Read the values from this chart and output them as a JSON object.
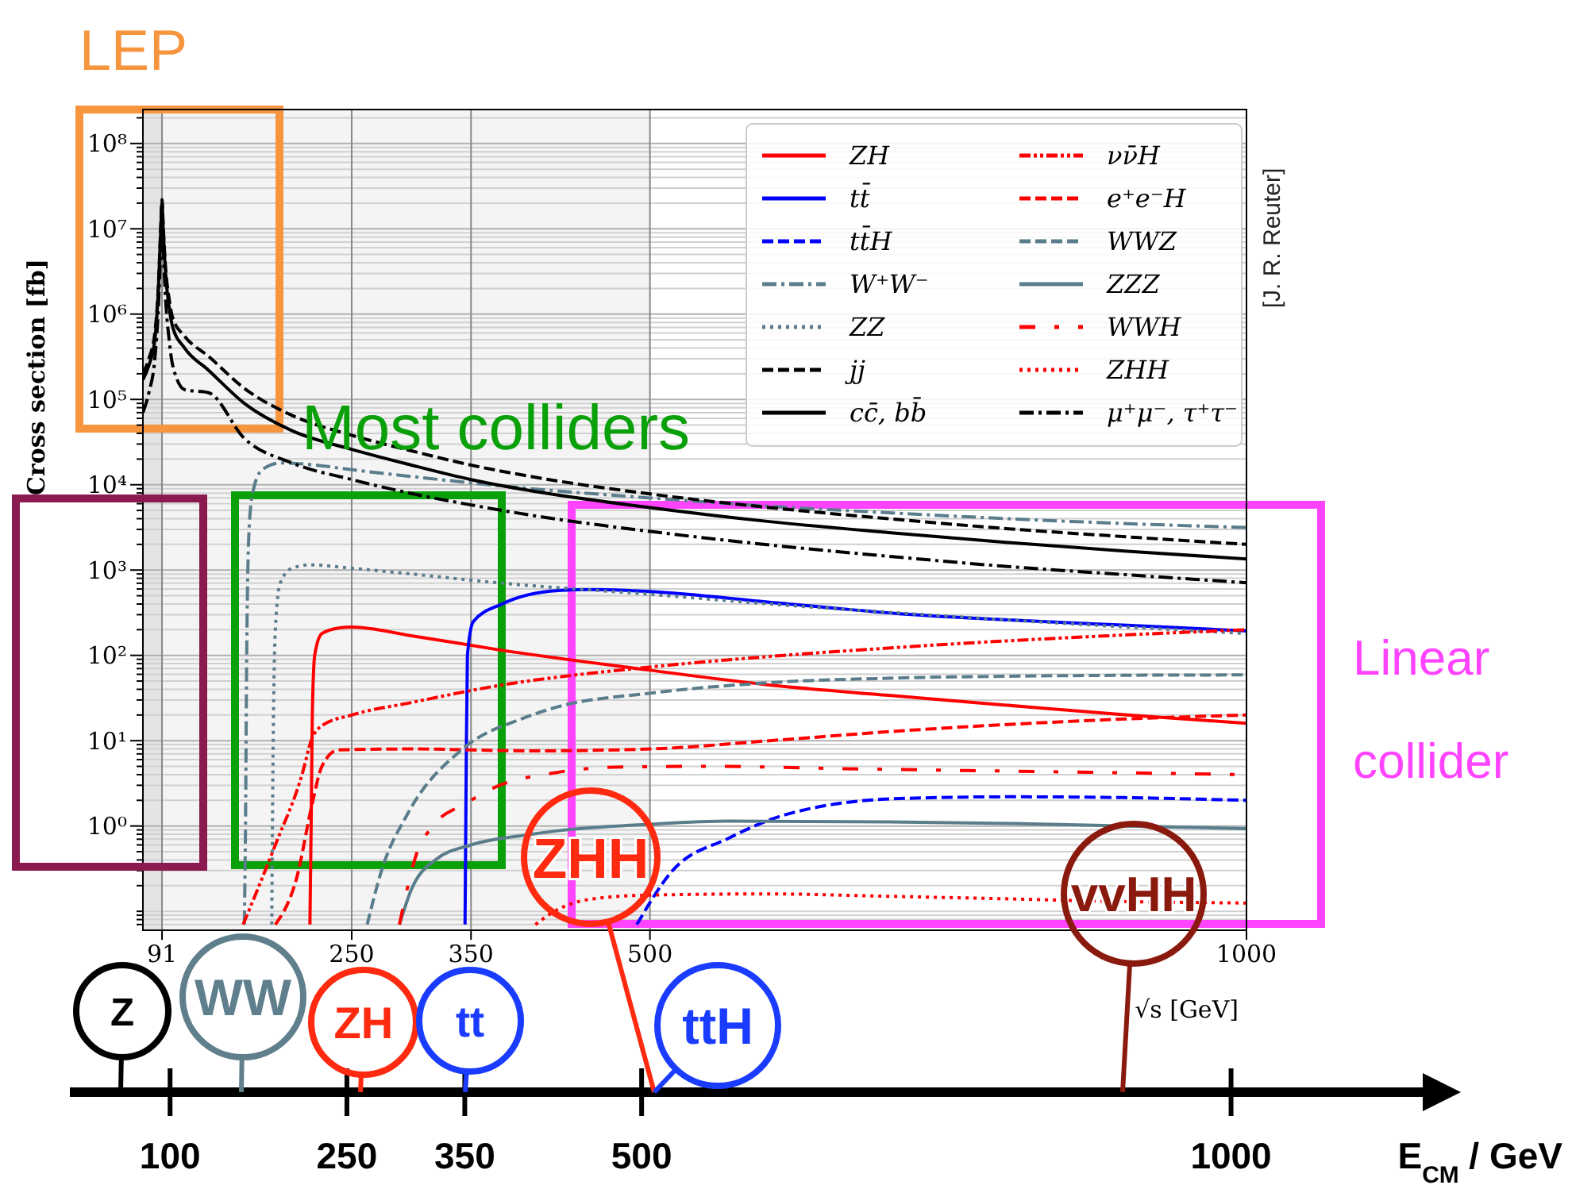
{
  "chart_data": {
    "type": "line",
    "xlabel": "√s [GeV]",
    "ylabel": "Cross section [fb]",
    "x2label": "E$_{CM}$ / GeV",
    "xlim": [
      75,
      1000
    ],
    "xticks": [
      91,
      250,
      350,
      500,
      1000
    ],
    "x2lim": [
      15,
      1168
    ],
    "x2ticks": [
      100,
      250,
      350,
      500,
      1000
    ],
    "ylim": [
      0.06,
      250000000.0
    ],
    "log": true,
    "grid": true,
    "legend": "top right",
    "yticks": [
      {
        "value": 0.07,
        "label": null
      },
      {
        "value": 0.08,
        "label": null
      },
      {
        "value": 0.09,
        "label": null
      },
      {
        "value": 0.1,
        "label": null
      },
      {
        "value": 0.2,
        "label": null
      },
      {
        "value": 0.3,
        "label": null
      },
      {
        "value": 0.4,
        "label": null
      },
      {
        "value": 0.5,
        "label": null
      },
      {
        "value": 0.6,
        "label": null
      },
      {
        "value": 0.7,
        "label": null
      },
      {
        "value": 0.8,
        "label": null
      },
      {
        "value": 0.9,
        "label": null
      },
      {
        "value": 1,
        "label": "10⁰"
      },
      {
        "value": 2,
        "label": null
      },
      {
        "value": 3,
        "label": null
      },
      {
        "value": 4,
        "label": null
      },
      {
        "value": 5,
        "label": null
      },
      {
        "value": 6,
        "label": null
      },
      {
        "value": 7,
        "label": null
      },
      {
        "value": 8,
        "label": null
      },
      {
        "value": 9,
        "label": null
      },
      {
        "value": 10,
        "label": "10¹"
      },
      {
        "value": 20,
        "label": null
      },
      {
        "value": 30,
        "label": null
      },
      {
        "value": 40,
        "label": null
      },
      {
        "value": 50,
        "label": null
      },
      {
        "value": 60,
        "label": null
      },
      {
        "value": 70,
        "label": null
      },
      {
        "value": 80,
        "label": null
      },
      {
        "value": 90,
        "label": null
      },
      {
        "value": 100,
        "label": "10²"
      },
      {
        "value": 200,
        "label": null
      },
      {
        "value": 300,
        "label": null
      },
      {
        "value": 400,
        "label": null
      },
      {
        "value": 500,
        "label": null
      },
      {
        "value": 600,
        "label": null
      },
      {
        "value": 700,
        "label": null
      },
      {
        "value": 800,
        "label": null
      },
      {
        "value": 900,
        "label": null
      },
      {
        "value": 1000,
        "label": "10³"
      },
      {
        "value": 2000,
        "label": null
      },
      {
        "value": 3000,
        "label": null
      },
      {
        "value": 4000,
        "label": null
      },
      {
        "value": 5000,
        "label": null
      },
      {
        "value": 6000,
        "label": null
      },
      {
        "value": 7000,
        "label": null
      },
      {
        "value": 8000,
        "label": null
      },
      {
        "value": 9000,
        "label": null
      },
      {
        "value": 10000.0,
        "label": "10⁴"
      },
      {
        "value": 20000.0,
        "label": null
      },
      {
        "value": 30000.0,
        "label": null
      },
      {
        "value": 40000.0,
        "label": null
      },
      {
        "value": 50000.0,
        "label": null
      },
      {
        "value": 60000.0,
        "label": null
      },
      {
        "value": 70000.0,
        "label": null
      },
      {
        "value": 80000.0,
        "label": null
      },
      {
        "value": 90000.0,
        "label": null
      },
      {
        "value": 100000.0,
        "label": "10⁵"
      },
      {
        "value": 200000.0,
        "label": null
      },
      {
        "value": 300000.0,
        "label": null
      },
      {
        "value": 400000.0,
        "label": null
      },
      {
        "value": 500000.0,
        "label": null
      },
      {
        "value": 600000.0,
        "label": null
      },
      {
        "value": 700000.0,
        "label": null
      },
      {
        "value": 800000.0,
        "label": null
      },
      {
        "value": 900000.0,
        "label": null
      },
      {
        "value": 1000000.0,
        "label": "10⁶"
      },
      {
        "value": 2000000.0,
        "label": null
      },
      {
        "value": 3000000.0,
        "label": null
      },
      {
        "value": 4000000.0,
        "label": null
      },
      {
        "value": 5000000.0,
        "label": null
      },
      {
        "value": 6000000.0,
        "label": null
      },
      {
        "value": 7000000.0,
        "label": null
      },
      {
        "value": 8000000.0,
        "label": null
      },
      {
        "value": 9000000.0,
        "label": null
      },
      {
        "value": 10000000.0,
        "label": "10⁷"
      },
      {
        "value": 20000000.0,
        "label": null
      },
      {
        "value": 30000000.0,
        "label": null
      },
      {
        "value": 40000000.0,
        "label": null
      },
      {
        "value": 50000000.0,
        "label": null
      },
      {
        "value": 60000000.0,
        "label": null
      },
      {
        "value": 70000000.0,
        "label": null
      },
      {
        "value": 80000000.0,
        "label": null
      },
      {
        "value": 90000000.0,
        "label": null
      },
      {
        "value": 100000000.0,
        "label": "10⁸"
      },
      {
        "value": 200000000.0,
        "label": null
      }
    ],
    "bands": [
      {
        "axis": "x",
        "from": 75,
        "to": 91,
        "color": "#e4e4e4"
      },
      {
        "axis": "x",
        "from": 91,
        "to": 500,
        "color": "#f4f4f4"
      }
    ],
    "series": [
      {
        "name": "ZH",
        "color": "#ff0000",
        "line_style": "solid",
        "x": [
          215,
          216,
          217,
          219,
          225,
          240,
          250,
          300,
          372,
          500,
          600,
          700,
          800,
          900,
          1000
        ],
        "values": [
          0.07,
          1,
          20,
          100,
          180,
          210,
          215,
          170,
          117,
          67,
          45,
          34,
          26,
          20,
          16
        ]
      },
      {
        "name": "tt̄",
        "color": "#0000ff",
        "line_style": "solid",
        "x": [
          345,
          346,
          347,
          352,
          376,
          423,
          450,
          500,
          600,
          709,
          800,
          900,
          1000
        ],
        "values": [
          0.07,
          5,
          100,
          250,
          400,
          575,
          590,
          560,
          420,
          308,
          260,
          225,
          194
        ]
      },
      {
        "name": "tt̄H",
        "color": "#0000ff",
        "line_style": "dashed",
        "x": [
          489,
          518,
          566,
          613,
          709,
          804,
          900,
          1000
        ],
        "values": [
          0.07,
          0.29,
          0.72,
          1.35,
          2.1,
          2.2,
          2.15,
          2.0
        ]
      },
      {
        "name": "W⁺W⁻",
        "color": "#5a7d8c",
        "line_style": "dashdot",
        "x": [
          160,
          161,
          162,
          164,
          167,
          175,
          190,
          220,
          250,
          300,
          400,
          500,
          600,
          700,
          800,
          900,
          1000
        ],
        "values": [
          0.07,
          1,
          100,
          3000,
          8000,
          15000,
          18000,
          17000,
          15000,
          12500,
          9000,
          7000,
          5600,
          4700,
          4000,
          3500,
          3160
        ]
      },
      {
        "name": "ZZ",
        "color": "#5a7d8c",
        "line_style": "dotted",
        "x": [
          183,
          184,
          186,
          190,
          200,
          215,
          250,
          300,
          372,
          500,
          600,
          700,
          800,
          900,
          1000
        ],
        "values": [
          0.07,
          5,
          200,
          700,
          1050,
          1150,
          1050,
          900,
          710,
          520,
          400,
          320,
          260,
          215,
          180
        ]
      },
      {
        "name": "jj",
        "color": "#000000",
        "line_style": "dashed",
        "x": [
          75,
          80,
          85,
          88,
          90,
          91,
          92,
          94,
          97,
          100,
          110,
          130,
          160,
          200,
          250,
          300,
          350,
          400,
          500,
          600,
          700,
          800,
          900,
          1000
        ],
        "values": [
          200000,
          300000,
          600000,
          2200000,
          11000000,
          22000000,
          11000000,
          3500000,
          1500000,
          900000,
          550000,
          320000,
          135000,
          65000,
          38000,
          25000,
          17000,
          12500,
          7800,
          5400,
          4000,
          3050,
          2450,
          2000
        ]
      },
      {
        "name": "cc̄, bb̄",
        "color": "#000000",
        "line_style": "solid",
        "x": [
          75,
          80,
          85,
          88,
          90,
          91,
          92,
          94,
          97,
          100,
          110,
          130,
          160,
          200,
          250,
          300,
          350,
          400,
          500,
          600,
          700,
          800,
          900,
          1000
        ],
        "values": [
          170000,
          250000,
          500000,
          2000000,
          10000000,
          20000000,
          10000000,
          3000000,
          1200000,
          700000,
          400000,
          220000,
          90000,
          43000,
          26000,
          17000,
          11500,
          8500,
          5400,
          3700,
          2750,
          2100,
          1660,
          1350
        ]
      },
      {
        "name": "νν̄H",
        "color": "#ff0000",
        "line_style": "dashdotdot",
        "x": [
          159,
          186,
          209,
          216,
          225,
          250,
          300,
          372,
          500,
          600,
          700,
          800,
          900,
          1000
        ],
        "values": [
          0.07,
          0.6,
          4.3,
          10,
          15,
          20,
          28,
          44,
          73,
          97,
          122,
          148,
          174,
          200
        ]
      },
      {
        "name": "e⁺e⁻H",
        "color": "#ff0000",
        "line_style": "dashed",
        "x": [
          186,
          204,
          217,
          225,
          239,
          300,
          400,
          500,
          600,
          709,
          800,
          900,
          1000
        ],
        "values": [
          0.07,
          0.25,
          1.85,
          5,
          7.8,
          8,
          7.6,
          8,
          10,
          13,
          15.5,
          18,
          20
        ]
      },
      {
        "name": "WWZ",
        "color": "#5a7d8c",
        "line_style": "dashed",
        "x": [
          263,
          275,
          297,
          342,
          395,
          423,
          500,
          613,
          700,
          800,
          900,
          1000
        ],
        "values": [
          0.07,
          0.3,
          1.4,
          7.8,
          18.6,
          25,
          36,
          49,
          54,
          57,
          58.5,
          59
        ]
      },
      {
        "name": "ZZZ",
        "color": "#5a7d8c",
        "line_style": "solid",
        "x": [
          290,
          300,
          320,
          350,
          395,
          423,
          500,
          566,
          700,
          804,
          900,
          1000
        ],
        "values": [
          0.07,
          0.18,
          0.4,
          0.6,
          0.78,
          0.88,
          1.05,
          1.14,
          1.12,
          1.07,
          1.0,
          0.93
        ]
      },
      {
        "name": "WWH",
        "color": "#ff0000",
        "line_style": "loose_dashdot",
        "x": [
          290,
          305,
          318,
          346,
          369,
          420,
          471,
          550,
          661,
          800,
          900,
          1000
        ],
        "values": [
          0.07,
          0.5,
          1.0,
          1.85,
          2.8,
          4.2,
          4.9,
          5.0,
          4.7,
          4.4,
          4.2,
          4.0
        ]
      },
      {
        "name": "ZHH",
        "color": "#ff0000",
        "line_style": "dotted",
        "x": [
          404,
          420,
          452,
          500,
          600,
          700,
          800,
          900,
          1000
        ],
        "values": [
          0.07,
          0.1,
          0.14,
          0.155,
          0.16,
          0.15,
          0.14,
          0.13,
          0.125
        ]
      },
      {
        "name": "μ⁺μ⁻, τ⁺τ⁻",
        "color": "#000000",
        "line_style": "dashdot",
        "x": [
          75,
          80,
          85,
          88,
          90,
          91,
          92,
          94,
          97,
          100,
          110,
          130,
          160,
          200,
          250,
          300,
          350,
          400,
          500,
          600,
          700,
          800,
          900,
          1000
        ],
        "values": [
          70000,
          120000,
          300000,
          1200000,
          6000000,
          12000000,
          6000000,
          1500000,
          500000,
          250000,
          130000,
          120000,
          35000,
          18000,
          11500,
          7900,
          5800,
          4400,
          2840,
          1970,
          1450,
          1100,
          880,
          710
        ]
      }
    ],
    "annotations": [
      "LEP",
      "Most colliders",
      "Linear collider",
      "[J. R. Reuter]",
      "Z",
      "WW",
      "ZH",
      "tt",
      "ZHH",
      "ttH",
      "vvHH"
    ]
  }
}
